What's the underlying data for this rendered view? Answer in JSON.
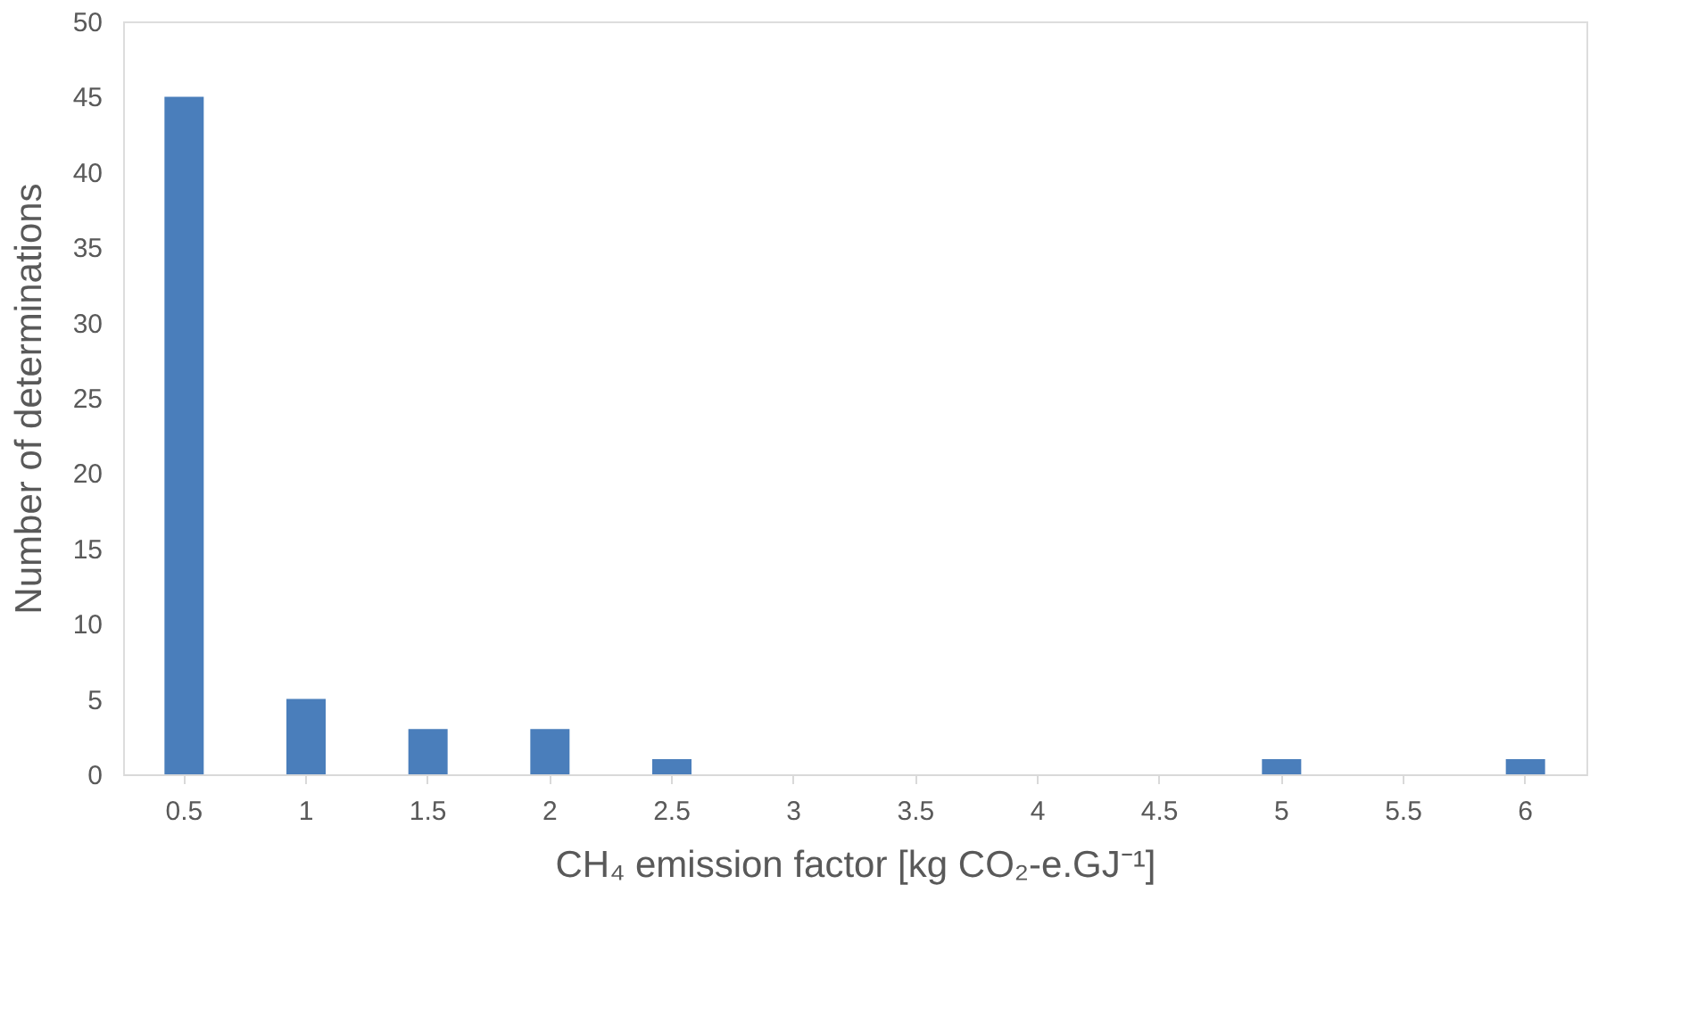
{
  "chart_data": {
    "type": "bar",
    "xlabel": "CH₄ emission factor [kg CO₂-e.GJ⁻¹]",
    "ylabel": "Number of determinations",
    "categories": [
      "0.5",
      "1",
      "1.5",
      "2",
      "2.5",
      "3",
      "3.5",
      "4",
      "4.5",
      "5",
      "5.5",
      "6"
    ],
    "values": [
      45,
      5,
      3,
      3,
      1,
      0,
      0,
      0,
      0,
      1,
      0,
      1
    ],
    "color": "#4a7ebb",
    "ylim": [
      0,
      50
    ],
    "yticks": [
      0,
      5,
      10,
      15,
      20,
      25,
      30,
      35,
      40,
      45,
      50
    ],
    "grid": false
  }
}
